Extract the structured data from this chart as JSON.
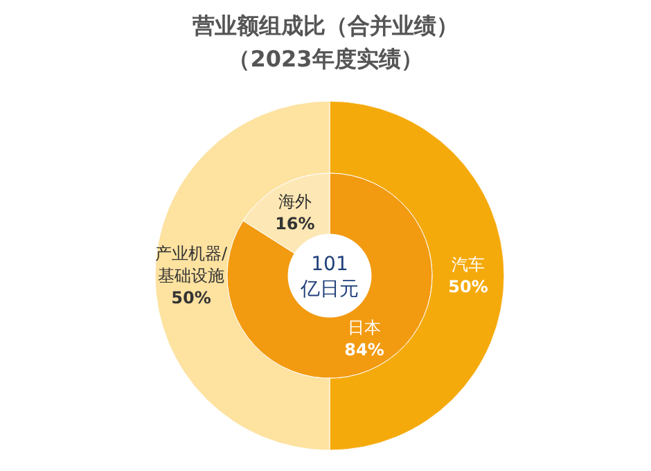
{
  "chart_data": [
    {
      "type": "donut",
      "title": "营业额组成比（合并业绩）",
      "subtitle": "（2023年度实绩）",
      "categories": [
        "汽车",
        "产业机器/基础设施"
      ],
      "values": [
        50,
        50
      ],
      "colors": [
        "#f5aa0c",
        "#fde2a0"
      ],
      "value_labels": [
        "50%",
        "50%"
      ]
    },
    {
      "type": "donut",
      "categories": [
        "日本",
        "海外"
      ],
      "values": [
        84,
        16
      ],
      "colors": [
        "#f29a10",
        "#fde7b4"
      ],
      "value_labels": [
        "84%",
        "16%"
      ],
      "annotations": [
        "101",
        "亿日元"
      ]
    }
  ]
}
